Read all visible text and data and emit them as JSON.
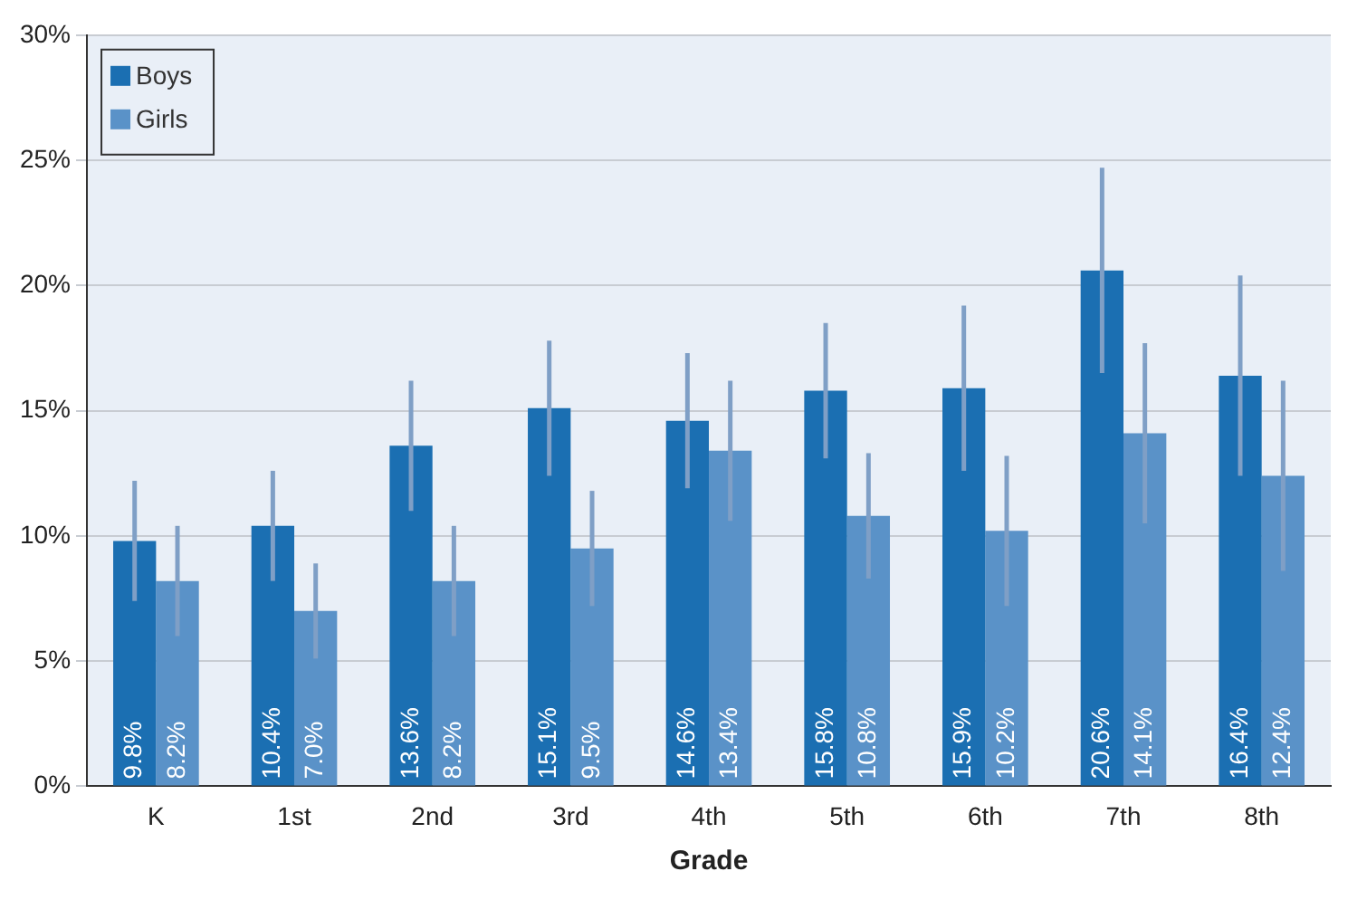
{
  "chart_data": {
    "type": "bar",
    "xlabel": "Grade",
    "categories": [
      "K",
      "1st",
      "2nd",
      "3rd",
      "4th",
      "5th",
      "6th",
      "7th",
      "8th"
    ],
    "series": [
      {
        "name": "Boys",
        "color": "#1b6fb2",
        "values": [
          9.8,
          10.4,
          13.6,
          15.1,
          14.6,
          15.8,
          15.9,
          20.6,
          16.4
        ],
        "errors": [
          2.4,
          2.2,
          2.6,
          2.7,
          2.7,
          2.7,
          3.3,
          4.1,
          4.0
        ],
        "value_labels": [
          "9.8%",
          "10.4%",
          "13.6%",
          "15.1%",
          "14.6%",
          "15.8%",
          "15.9%",
          "20.6%",
          "16.4%"
        ]
      },
      {
        "name": "Girls",
        "color": "#5a92c8",
        "values": [
          8.2,
          7.0,
          8.2,
          9.5,
          13.4,
          10.8,
          10.2,
          14.1,
          12.4
        ],
        "errors": [
          2.2,
          1.9,
          2.2,
          2.3,
          2.8,
          2.5,
          3.0,
          3.6,
          3.8
        ],
        "value_labels": [
          "8.2%",
          "7.0%",
          "8.2%",
          "9.5%",
          "13.4%",
          "10.8%",
          "10.2%",
          "14.1%",
          "12.4%"
        ]
      }
    ],
    "ylim": [
      0,
      30
    ],
    "yticks": [
      {
        "value": 0,
        "label": "0%"
      },
      {
        "value": 5,
        "label": "5%"
      },
      {
        "value": 10,
        "label": "10%"
      },
      {
        "value": 15,
        "label": "15%"
      },
      {
        "value": 20,
        "label": "20%"
      },
      {
        "value": 25,
        "label": "25%"
      },
      {
        "value": 30,
        "label": "30%"
      }
    ],
    "grid": "y",
    "legend": "top left"
  }
}
